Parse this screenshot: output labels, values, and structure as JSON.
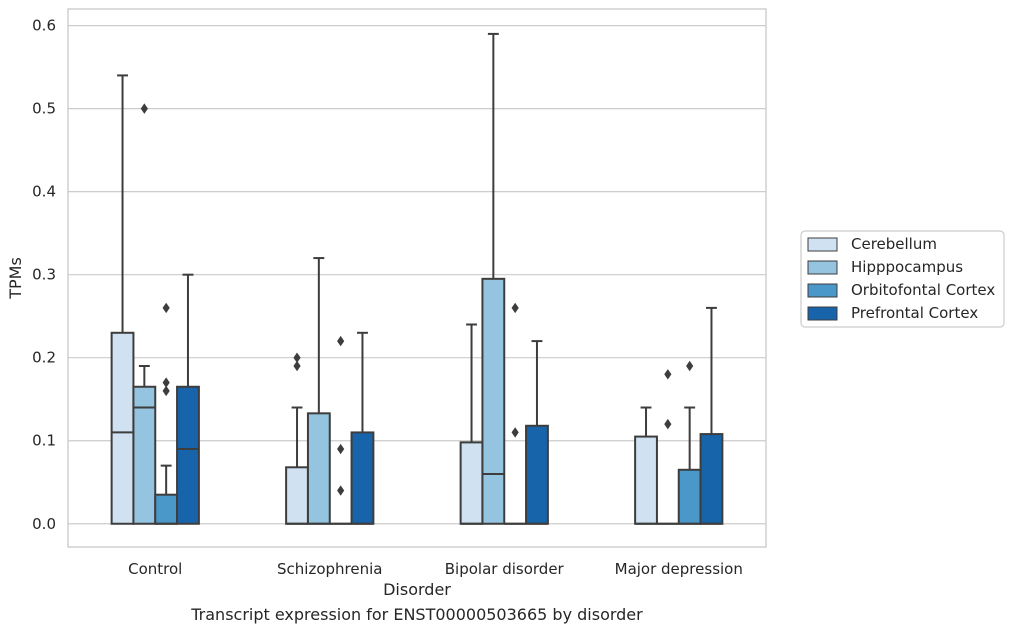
{
  "caption": "Transcript expression for ENST00000503665 by disorder",
  "chart_data": {
    "type": "box",
    "title": "",
    "xlabel": "Disorder",
    "ylabel": "TPMs",
    "ylim": [
      -0.028,
      0.62
    ],
    "yticks": [
      0.0,
      0.1,
      0.2,
      0.3,
      0.4,
      0.5,
      0.6
    ],
    "ytick_labels": [
      "0.0",
      "0.1",
      "0.2",
      "0.3",
      "0.4",
      "0.5",
      "0.6"
    ],
    "grid": "horizontal",
    "legend_position": "right",
    "categories": [
      "Control",
      "Schizophrenia",
      "Bipolar disorder",
      "Major depression"
    ],
    "series": [
      {
        "name": "Cerebellum",
        "color": "#d0e1f2",
        "boxes": [
          {
            "q1": 0.0,
            "median": 0.11,
            "q3": 0.23,
            "whisker_low": 0.0,
            "whisker_high": 0.54,
            "outliers": []
          },
          {
            "q1": 0.0,
            "median": 0.0,
            "q3": 0.068,
            "whisker_low": 0.0,
            "whisker_high": 0.14,
            "outliers": [
              0.19,
              0.2
            ]
          },
          {
            "q1": 0.0,
            "median": 0.0,
            "q3": 0.098,
            "whisker_low": 0.0,
            "whisker_high": 0.24,
            "outliers": []
          },
          {
            "q1": 0.0,
            "median": 0.0,
            "q3": 0.105,
            "whisker_low": 0.0,
            "whisker_high": 0.14,
            "outliers": []
          }
        ]
      },
      {
        "name": "Hipppocampus",
        "color": "#94c4df",
        "boxes": [
          {
            "q1": 0.0,
            "median": 0.14,
            "q3": 0.165,
            "whisker_low": 0.0,
            "whisker_high": 0.19,
            "outliers": [
              0.5
            ]
          },
          {
            "q1": 0.0,
            "median": 0.0,
            "q3": 0.133,
            "whisker_low": 0.0,
            "whisker_high": 0.32,
            "outliers": []
          },
          {
            "q1": 0.0,
            "median": 0.06,
            "q3": 0.295,
            "whisker_low": 0.0,
            "whisker_high": 0.59,
            "outliers": []
          },
          {
            "q1": 0.0,
            "median": 0.0,
            "q3": 0.0,
            "whisker_low": 0.0,
            "whisker_high": 0.0,
            "outliers": [
              0.12,
              0.18
            ]
          }
        ]
      },
      {
        "name": "Orbitofontal Cortex",
        "color": "#4a98c9",
        "boxes": [
          {
            "q1": 0.0,
            "median": 0.0,
            "q3": 0.035,
            "whisker_low": 0.0,
            "whisker_high": 0.07,
            "outliers": [
              0.16,
              0.17,
              0.26
            ]
          },
          {
            "q1": 0.0,
            "median": 0.0,
            "q3": 0.0,
            "whisker_low": 0.0,
            "whisker_high": 0.0,
            "outliers": [
              0.04,
              0.09,
              0.22
            ]
          },
          {
            "q1": 0.0,
            "median": 0.0,
            "q3": 0.0,
            "whisker_low": 0.0,
            "whisker_high": 0.0,
            "outliers": [
              0.11,
              0.26
            ]
          },
          {
            "q1": 0.0,
            "median": 0.0,
            "q3": 0.065,
            "whisker_low": 0.0,
            "whisker_high": 0.14,
            "outliers": [
              0.19
            ]
          }
        ]
      },
      {
        "name": "Prefrontal Cortex",
        "color": "#1764ab",
        "boxes": [
          {
            "q1": 0.0,
            "median": 0.09,
            "q3": 0.165,
            "whisker_low": 0.0,
            "whisker_high": 0.3,
            "outliers": []
          },
          {
            "q1": 0.0,
            "median": 0.0,
            "q3": 0.11,
            "whisker_low": 0.0,
            "whisker_high": 0.23,
            "outliers": []
          },
          {
            "q1": 0.0,
            "median": 0.0,
            "q3": 0.118,
            "whisker_low": 0.0,
            "whisker_high": 0.22,
            "outliers": []
          },
          {
            "q1": 0.0,
            "median": 0.0,
            "q3": 0.108,
            "whisker_low": 0.0,
            "whisker_high": 0.26,
            "outliers": []
          }
        ]
      }
    ],
    "colors": {
      "grid": "#cccccc",
      "frame": "#cccccc",
      "line": "#3d3d3d"
    }
  }
}
